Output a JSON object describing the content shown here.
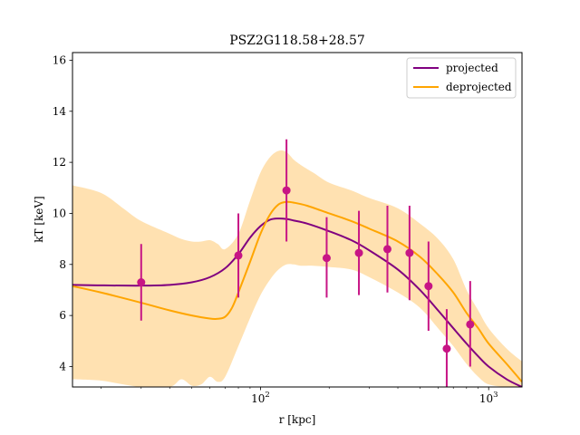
{
  "chart_data": {
    "type": "line",
    "title": "PSZ2G118.58+28.57",
    "xlabel": "r [kpc]",
    "ylabel": "kT [keV]",
    "x_scale": "log",
    "xlim": [
      15,
      1400
    ],
    "ylim": [
      3.2,
      16.3
    ],
    "x_ticks": [
      {
        "value": 100,
        "label_base": "10",
        "label_exp": "2"
      },
      {
        "value": 1000,
        "label_base": "10",
        "label_exp": "3"
      }
    ],
    "y_ticks": [
      4,
      6,
      8,
      10,
      12,
      14,
      16
    ],
    "grid": false,
    "legend_position": "top-right",
    "colors": {
      "projected": "#800080",
      "deprojected": "#ffa500",
      "band": "#ffdca3",
      "points": "#c71585"
    },
    "series": [
      {
        "name": "projected",
        "x": [
          15,
          20,
          30,
          40,
          50,
          60,
          70,
          80,
          90,
          100,
          110,
          120,
          130,
          140,
          160,
          200,
          250,
          300,
          400,
          500,
          600,
          700,
          800,
          900,
          1000,
          1200,
          1400
        ],
        "y": [
          7.2,
          7.18,
          7.17,
          7.2,
          7.3,
          7.5,
          7.85,
          8.4,
          9.05,
          9.5,
          9.75,
          9.8,
          9.78,
          9.72,
          9.6,
          9.3,
          8.95,
          8.55,
          7.8,
          7.0,
          6.2,
          5.5,
          4.9,
          4.4,
          4.0,
          3.5,
          3.2
        ]
      },
      {
        "name": "deprojected",
        "x": [
          15,
          20,
          30,
          40,
          50,
          60,
          65,
          70,
          75,
          80,
          90,
          100,
          110,
          120,
          130,
          140,
          160,
          200,
          250,
          300,
          400,
          500,
          600,
          700,
          800,
          900,
          1000,
          1200,
          1400
        ],
        "y": [
          7.15,
          6.9,
          6.5,
          6.2,
          6.0,
          5.88,
          5.87,
          5.95,
          6.3,
          6.9,
          8.1,
          9.2,
          9.95,
          10.35,
          10.45,
          10.42,
          10.3,
          10.0,
          9.7,
          9.4,
          8.9,
          8.3,
          7.6,
          6.9,
          6.1,
          5.5,
          4.9,
          4.1,
          3.4
        ]
      }
    ],
    "band": {
      "x": [
        15,
        20,
        25,
        30,
        40,
        45,
        50,
        55,
        60,
        65,
        70,
        80,
        90,
        100,
        110,
        120,
        130,
        140,
        150,
        170,
        200,
        250,
        300,
        400,
        500,
        600,
        700,
        800,
        900,
        1000,
        1200,
        1400
      ],
      "upper": [
        11.1,
        10.8,
        10.2,
        9.7,
        9.2,
        9.0,
        8.9,
        8.9,
        8.95,
        8.8,
        8.6,
        9.2,
        10.5,
        11.6,
        12.2,
        12.45,
        12.4,
        12.1,
        11.9,
        11.6,
        11.2,
        10.9,
        10.6,
        10.2,
        9.6,
        9.0,
        8.2,
        7.0,
        6.2,
        5.5,
        4.7,
        4.2
      ],
      "lower": [
        3.5,
        3.45,
        3.3,
        3.2,
        3.2,
        3.5,
        3.25,
        3.3,
        3.6,
        3.4,
        3.6,
        4.8,
        5.9,
        6.8,
        7.4,
        7.8,
        8.0,
        8.0,
        7.95,
        7.95,
        7.9,
        7.8,
        7.5,
        6.9,
        6.3,
        5.5,
        4.8,
        4.1,
        3.6,
        3.3,
        3.2,
        3.2
      ]
    },
    "points": {
      "name": "data",
      "x": [
        30,
        80,
        130,
        195,
        270,
        360,
        450,
        545,
        655,
        830
      ],
      "y": [
        7.3,
        8.35,
        10.9,
        8.25,
        8.45,
        8.6,
        8.45,
        7.15,
        4.7,
        5.65
      ],
      "yerr_low": [
        5.8,
        6.7,
        8.9,
        6.7,
        6.8,
        6.9,
        6.6,
        5.4,
        3.2,
        4.0
      ],
      "yerr_high": [
        8.8,
        10.0,
        12.9,
        9.85,
        10.1,
        10.3,
        10.3,
        8.9,
        6.25,
        7.35
      ]
    }
  }
}
